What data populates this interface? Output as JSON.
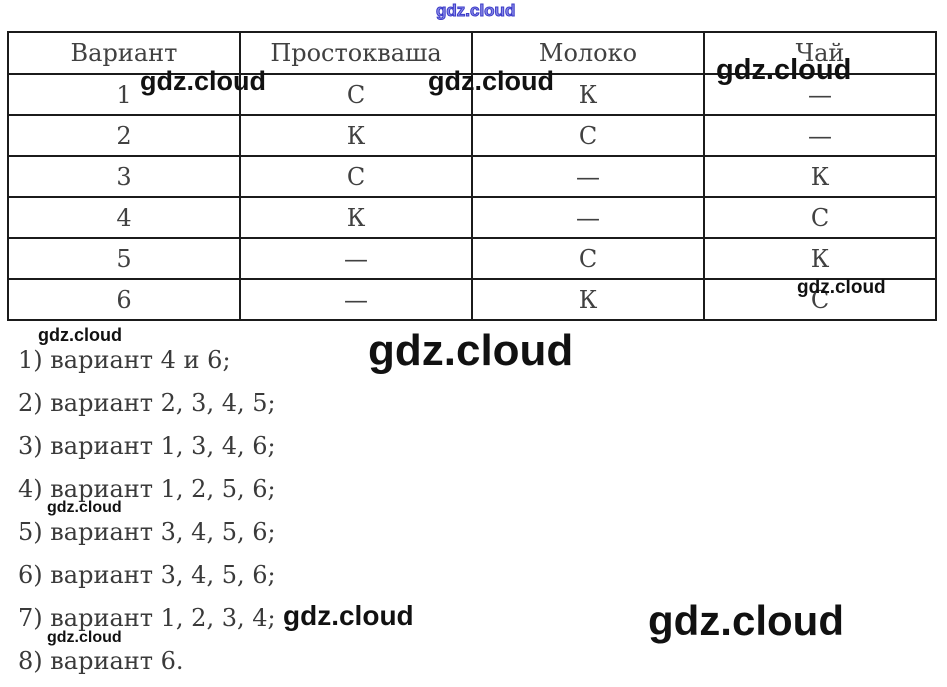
{
  "watermark": {
    "text": "gdz.cloud"
  },
  "table": {
    "headers": [
      "Вариант",
      "Простокваша",
      "Молоко",
      "Чай"
    ],
    "rows": [
      [
        "1",
        "С",
        "К",
        "—"
      ],
      [
        "2",
        "К",
        "С",
        "—"
      ],
      [
        "3",
        "С",
        "—",
        "К"
      ],
      [
        "4",
        "К",
        "—",
        "С"
      ],
      [
        "5",
        "—",
        "С",
        "К"
      ],
      [
        "6",
        "—",
        "К",
        "С"
      ]
    ]
  },
  "answers": [
    "1) вариант 4 и 6;",
    "2) вариант 2, 3, 4, 5;",
    "3) вариант 1, 3, 4, 6;",
    "4) вариант 1, 2, 5, 6;",
    "5) вариант 3, 4, 5, 6;",
    "6) вариант 3, 4, 5, 6;",
    "7) вариант 1, 2, 3, 4;",
    "8) вариант 6."
  ]
}
